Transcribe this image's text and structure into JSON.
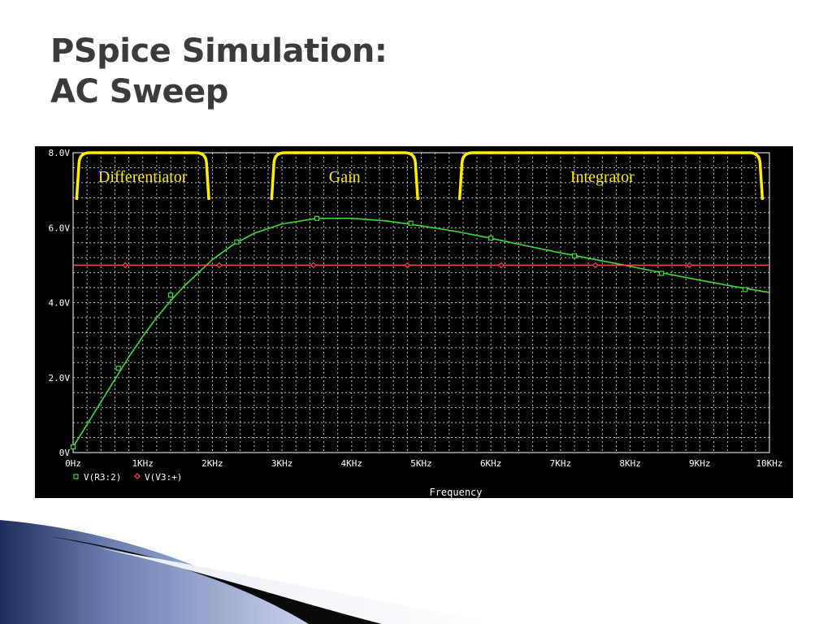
{
  "slide": {
    "title_line1": "PSpice Simulation:",
    "title_line2": "AC Sweep"
  },
  "colors": {
    "background": "#000000",
    "grid": "#ffffff",
    "series1": "#3ddc3d",
    "series2": "#ff4a4a",
    "bracket": "#ffee00",
    "title": "#3b3b3b"
  },
  "chart_data": {
    "type": "line",
    "xlabel": "Frequency",
    "xlim": [
      0,
      10000
    ],
    "ylim": [
      0,
      8
    ],
    "x_ticks": [
      {
        "value": 0,
        "label": "0Hz"
      },
      {
        "value": 1000,
        "label": "1KHz"
      },
      {
        "value": 2000,
        "label": "2KHz"
      },
      {
        "value": 3000,
        "label": "3KHz"
      },
      {
        "value": 4000,
        "label": "4KHz"
      },
      {
        "value": 5000,
        "label": "5KHz"
      },
      {
        "value": 6000,
        "label": "6KHz"
      },
      {
        "value": 7000,
        "label": "7KHz"
      },
      {
        "value": 8000,
        "label": "8KHz"
      },
      {
        "value": 9000,
        "label": "9KHz"
      },
      {
        "value": 10000,
        "label": "10KHz"
      }
    ],
    "y_ticks": [
      {
        "value": 0,
        "label": "0V"
      },
      {
        "value": 2,
        "label": "2.0V"
      },
      {
        "value": 4,
        "label": "4.0V"
      },
      {
        "value": 6,
        "label": "6.0V"
      },
      {
        "value": 8,
        "label": "8.0V"
      }
    ],
    "grid": true,
    "legend_position": "bottom-left",
    "series": [
      {
        "name": "V(R3:2)",
        "marker": "square",
        "x": [
          0,
          200,
          400,
          600,
          800,
          1000,
          1200,
          1400,
          1600,
          1800,
          2000,
          2300,
          2600,
          3000,
          3500,
          4000,
          4500,
          5000,
          5500,
          6000,
          6500,
          7000,
          7500,
          8000,
          8500,
          9000,
          9500,
          10000
        ],
        "values": [
          0.15,
          0.75,
          1.35,
          1.95,
          2.55,
          3.1,
          3.6,
          4.05,
          4.45,
          4.8,
          5.15,
          5.55,
          5.85,
          6.1,
          6.25,
          6.25,
          6.18,
          6.05,
          5.9,
          5.72,
          5.52,
          5.33,
          5.15,
          4.97,
          4.78,
          4.6,
          4.43,
          4.27
        ],
        "markers_x": [
          0,
          650,
          1400,
          2350,
          3500,
          4850,
          6000,
          7200,
          8450,
          9650
        ],
        "markers_y": [
          0.15,
          2.25,
          4.2,
          5.62,
          6.25,
          6.12,
          5.72,
          5.25,
          4.78,
          4.35
        ]
      },
      {
        "name": "V(V3:+)",
        "marker": "diamond",
        "x": [
          0,
          10000
        ],
        "values": [
          5.0,
          5.0
        ],
        "markers_x": [
          750,
          2100,
          3450,
          4800,
          6150,
          7500,
          8850
        ],
        "markers_y": [
          5.0,
          5.0,
          5.0,
          5.0,
          5.0,
          5.0,
          5.0
        ]
      }
    ],
    "annotations": [
      {
        "label": "Differentiator",
        "x_start": 50,
        "x_end": 1950,
        "label_x": 1000
      },
      {
        "label": "Gain",
        "x_start": 2850,
        "x_end": 4950,
        "label_x": 3900
      },
      {
        "label": "Integrator",
        "x_start": 5550,
        "x_end": 9900,
        "label_x": 7600
      }
    ]
  }
}
